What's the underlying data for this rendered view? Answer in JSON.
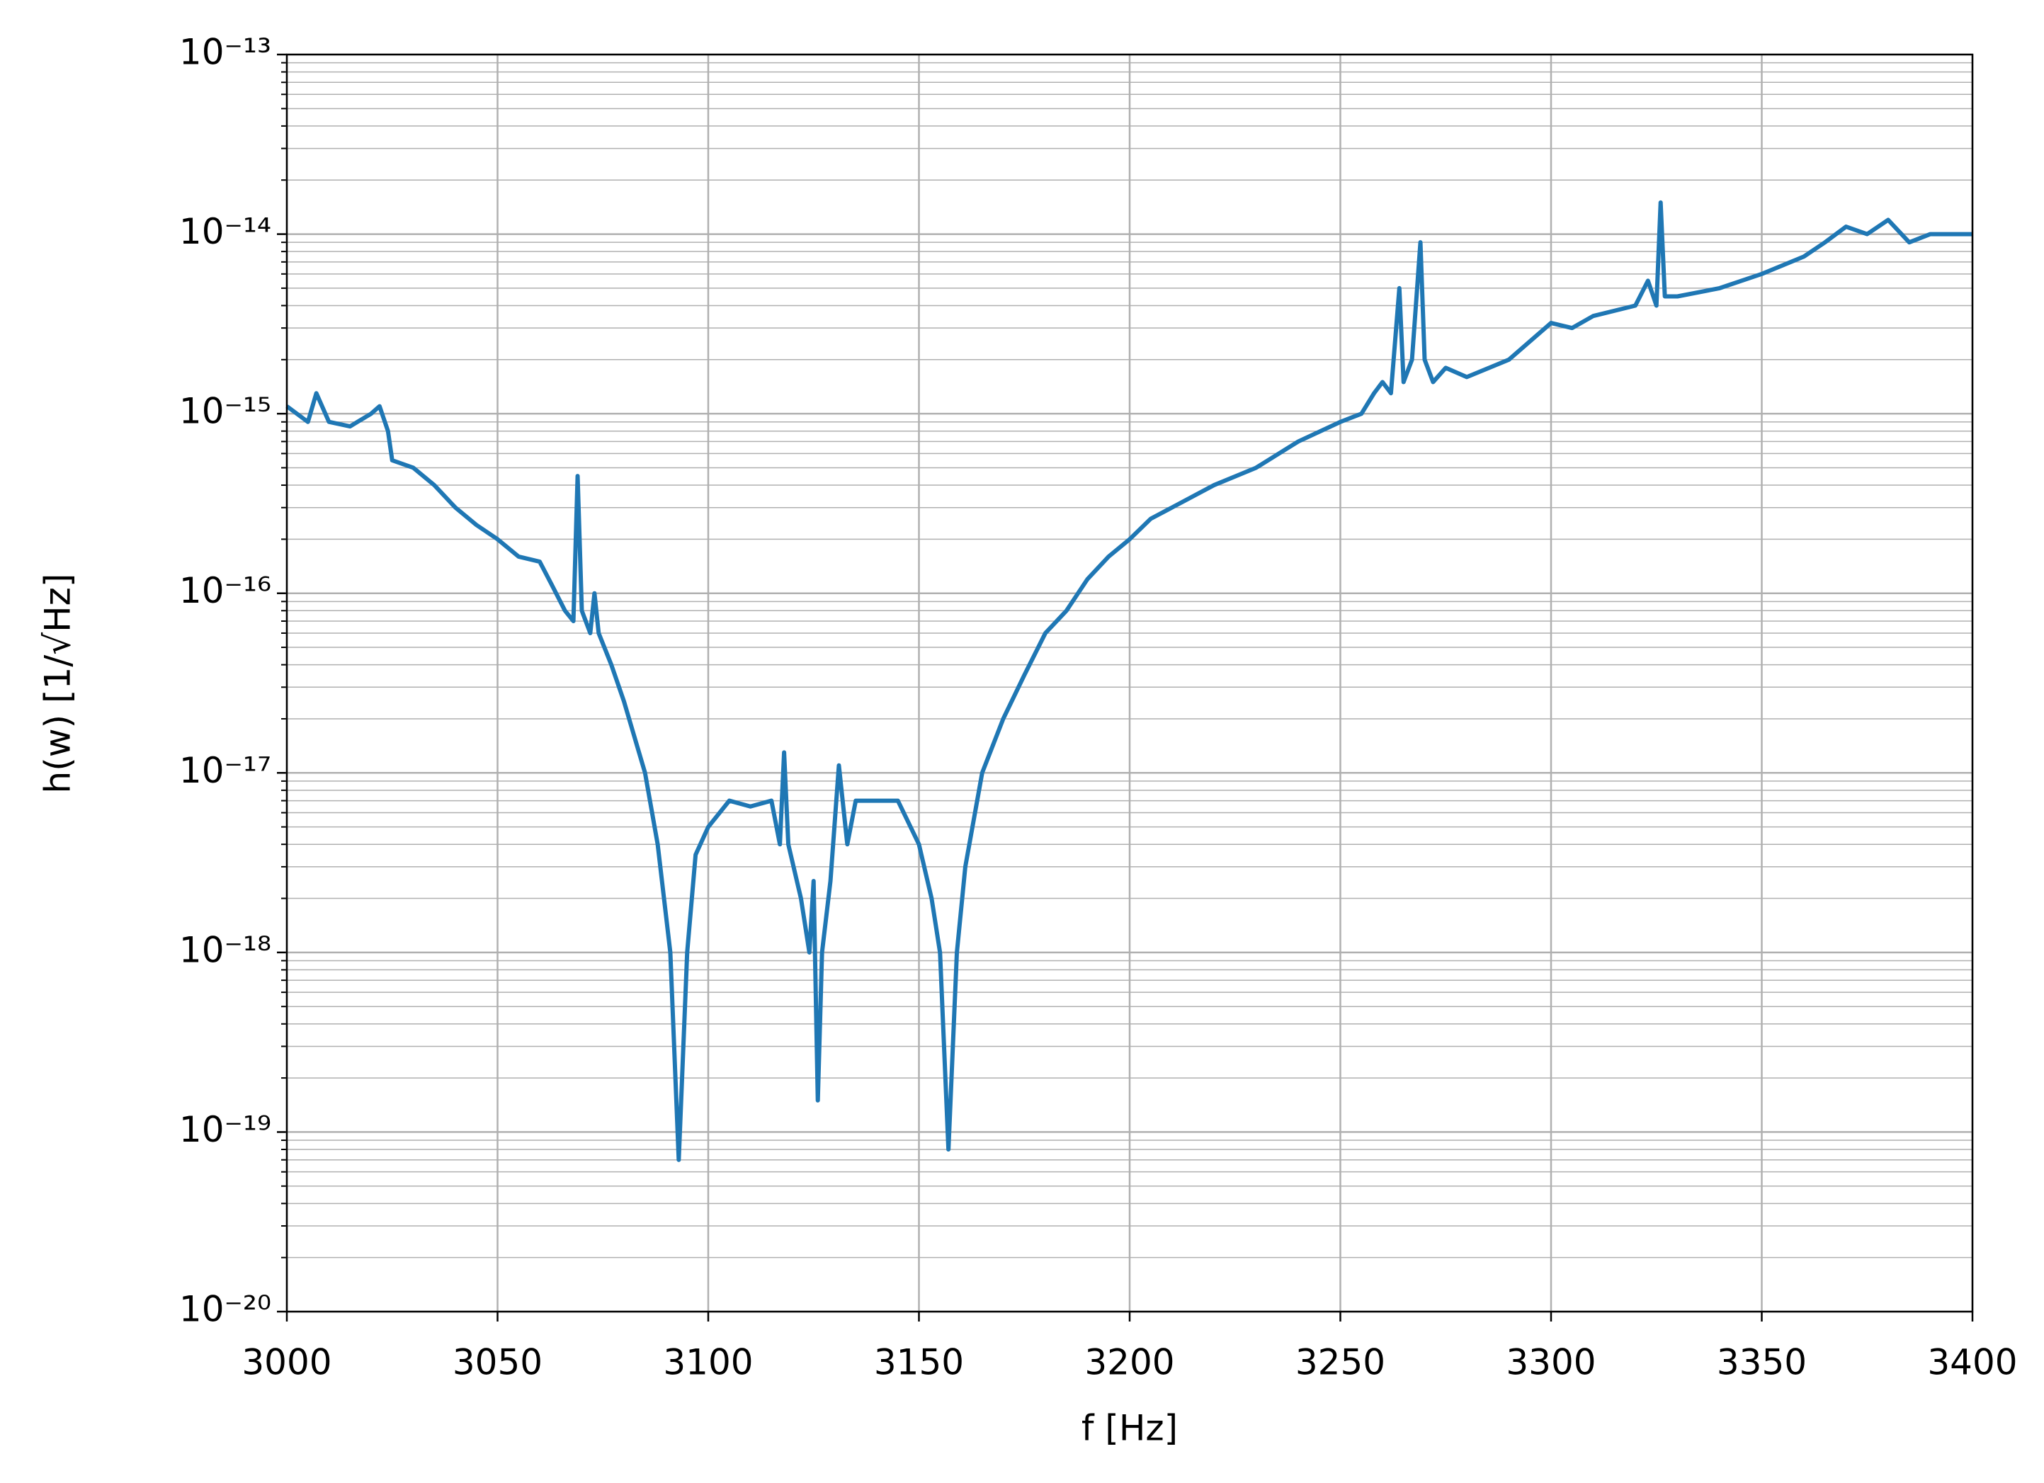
{
  "chart_data": {
    "type": "line",
    "xlabel": "f [Hz]",
    "ylabel": "h(w) [1/√Hz]",
    "log_y": true,
    "grid": true,
    "xlim": [
      3000,
      3400
    ],
    "xticks": [
      3000,
      3050,
      3100,
      3150,
      3200,
      3250,
      3300,
      3350,
      3400
    ],
    "ylim": [
      1e-20,
      1e-13
    ],
    "yticks": [
      {
        "value": 1e-20,
        "label": "10⁻²⁰"
      },
      {
        "value": 1e-19,
        "label": "10⁻¹⁹"
      },
      {
        "value": 1e-18,
        "label": "10⁻¹⁸"
      },
      {
        "value": 1e-17,
        "label": "10⁻¹⁷"
      },
      {
        "value": 1e-16,
        "label": "10⁻¹⁶"
      },
      {
        "value": 1e-15,
        "label": "10⁻¹⁵"
      },
      {
        "value": 1e-14,
        "label": "10⁻¹⁴"
      },
      {
        "value": 1e-13,
        "label": "10⁻¹³"
      }
    ],
    "x": [
      3000,
      3005,
      3007,
      3010,
      3015,
      3020,
      3022,
      3024,
      3025,
      3030,
      3035,
      3040,
      3045,
      3050,
      3055,
      3060,
      3063,
      3066,
      3068,
      3069,
      3070,
      3072,
      3073,
      3074,
      3077,
      3080,
      3085,
      3088,
      3091,
      3093,
      3095,
      3097,
      3100,
      3105,
      3110,
      3115,
      3117,
      3118,
      3119,
      3122,
      3124,
      3125,
      3126,
      3127,
      3129,
      3131,
      3133,
      3135,
      3140,
      3145,
      3150,
      3153,
      3155,
      3157,
      3159,
      3161,
      3165,
      3170,
      3175,
      3180,
      3185,
      3190,
      3195,
      3200,
      3205,
      3210,
      3220,
      3230,
      3240,
      3250,
      3255,
      3258,
      3260,
      3262,
      3264,
      3265,
      3267,
      3269,
      3270,
      3272,
      3275,
      3280,
      3290,
      3300,
      3305,
      3310,
      3320,
      3323,
      3325,
      3326,
      3327,
      3330,
      3340,
      3350,
      3360,
      3365,
      3370,
      3375,
      3380,
      3385,
      3390,
      3395,
      3400
    ],
    "series": [
      {
        "color": "#1f77b4",
        "values": [
          1.1e-15,
          9e-16,
          1.3e-15,
          9e-16,
          8.5e-16,
          1e-15,
          1.1e-15,
          8e-16,
          5.5e-16,
          5e-16,
          4e-16,
          3e-16,
          2.4e-16,
          2e-16,
          1.6e-16,
          1.5e-16,
          1.1e-16,
          8e-17,
          7e-17,
          4.5e-16,
          8e-17,
          6e-17,
          1e-16,
          6e-17,
          4e-17,
          2.5e-17,
          1e-17,
          4e-18,
          1e-18,
          7e-20,
          1e-18,
          3.5e-18,
          5e-18,
          7e-18,
          6.5e-18,
          7e-18,
          4e-18,
          1.3e-17,
          4e-18,
          2e-18,
          1e-18,
          2.5e-18,
          1.5e-19,
          1e-18,
          2.5e-18,
          1.1e-17,
          4e-18,
          7e-18,
          7e-18,
          7e-18,
          4e-18,
          2e-18,
          1e-18,
          8e-20,
          1e-18,
          3e-18,
          1e-17,
          2e-17,
          3.5e-17,
          6e-17,
          8e-17,
          1.2e-16,
          1.6e-16,
          2e-16,
          2.6e-16,
          3e-16,
          4e-16,
          5e-16,
          7e-16,
          9e-16,
          1e-15,
          1.3e-15,
          1.5e-15,
          1.3e-15,
          5e-15,
          1.5e-15,
          2e-15,
          9e-15,
          2e-15,
          1.5e-15,
          1.8e-15,
          1.6e-15,
          2e-15,
          3.2e-15,
          3e-15,
          3.5e-15,
          4e-15,
          5.5e-15,
          4e-15,
          1.5e-14,
          4.5e-15,
          4.5e-15,
          5e-15,
          6e-15,
          7.5e-15,
          9e-15,
          1.1e-14,
          1e-14,
          1.2e-14,
          9e-15,
          1e-14,
          1e-14,
          1e-14
        ]
      }
    ]
  }
}
